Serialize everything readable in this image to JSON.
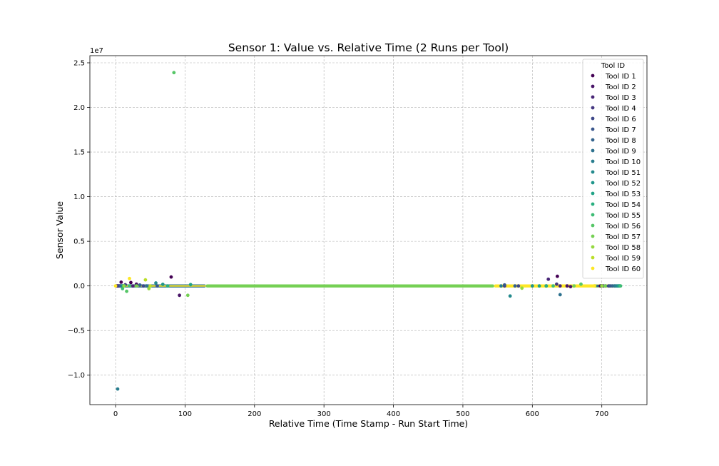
{
  "chart_data": {
    "type": "scatter",
    "title": "Sensor 1: Value vs. Relative Time (2 Runs per Tool)",
    "xlabel": "Relative Time (Time Stamp - Run Start Time)",
    "ylabel": "Sensor Value",
    "y_offset_label": "1e7",
    "xlim": [
      -37,
      765
    ],
    "ylim": [
      -13300000,
      25800000
    ],
    "x_ticks": [
      0,
      100,
      200,
      300,
      400,
      500,
      600,
      700
    ],
    "x_tick_labels": [
      "0",
      "100",
      "200",
      "300",
      "400",
      "500",
      "600",
      "700"
    ],
    "y_ticks": [
      -10000000,
      -5000000,
      0,
      5000000,
      10000000,
      15000000,
      20000000,
      25000000
    ],
    "y_tick_labels": [
      "−1.0",
      "−0.5",
      "0.0",
      "0.5",
      "1.0",
      "1.5",
      "2.0",
      "2.5"
    ],
    "grid": true,
    "legend": {
      "title": "Tool ID",
      "placement": "top-right",
      "entries": [
        "Tool ID 1",
        "Tool ID 2",
        "Tool ID 3",
        "Tool ID 4",
        "Tool ID 6",
        "Tool ID 7",
        "Tool ID 8",
        "Tool ID 9",
        "Tool ID 10",
        "Tool ID 51",
        "Tool ID 52",
        "Tool ID 53",
        "Tool ID 54",
        "Tool ID 55",
        "Tool ID 56",
        "Tool ID 57",
        "Tool ID 58",
        "Tool ID 59",
        "Tool ID 60"
      ],
      "colors": [
        "#440154",
        "#481467",
        "#482576",
        "#453781",
        "#3f4889",
        "#39568c",
        "#33638d",
        "#2d718e",
        "#287d8e",
        "#238a8d",
        "#1f968b",
        "#20a386",
        "#29af7f",
        "#3dbc74",
        "#56c667",
        "#75d054",
        "#95d840",
        "#bade28",
        "#fde725"
      ]
    },
    "series": [
      {
        "name": "Tool ID 1",
        "color": "#440154",
        "points": [
          [
            2,
            0
          ],
          [
            8,
            420000
          ],
          [
            22,
            380000
          ],
          [
            80,
            1000000
          ],
          [
            636,
            1080000
          ],
          [
            698,
            0
          ],
          [
            700,
            0
          ]
        ]
      },
      {
        "name": "Tool ID 2",
        "color": "#481467",
        "points": [
          [
            5,
            0
          ],
          [
            30,
            200000
          ],
          [
            92,
            -1050000
          ],
          [
            650,
            0
          ],
          [
            655,
            -80000
          ],
          [
            700,
            0
          ]
        ]
      },
      {
        "name": "Tool ID 3",
        "color": "#482576",
        "points": [
          [
            3,
            0
          ],
          [
            25,
            0
          ],
          [
            620,
            0
          ],
          [
            623,
            750000
          ],
          [
            640,
            0
          ],
          [
            702,
            0
          ]
        ]
      },
      {
        "name": "Tool ID 4",
        "color": "#453781",
        "points": [
          [
            4,
            0
          ],
          [
            14,
            130000
          ],
          [
            560,
            0
          ],
          [
            635,
            200000
          ],
          [
            705,
            0
          ]
        ]
      },
      {
        "name": "Tool ID 6",
        "color": "#3f4889",
        "points": [
          [
            6,
            0
          ],
          [
            40,
            0
          ],
          [
            580,
            0
          ],
          [
            710,
            0
          ]
        ]
      },
      {
        "name": "Tool ID 7",
        "color": "#39568c",
        "points": [
          [
            7,
            0
          ],
          [
            60,
            0
          ],
          [
            560,
            110000
          ],
          [
            712,
            0
          ]
        ]
      },
      {
        "name": "Tool ID 8",
        "color": "#33638d",
        "points": [
          [
            8,
            0
          ],
          [
            35,
            100000
          ],
          [
            575,
            0
          ],
          [
            715,
            0
          ]
        ]
      },
      {
        "name": "Tool ID 9",
        "color": "#2d718e",
        "points": [
          [
            9,
            0
          ],
          [
            45,
            0
          ],
          [
            640,
            -980000
          ],
          [
            718,
            0
          ]
        ]
      },
      {
        "name": "Tool ID 10",
        "color": "#287d8e",
        "points": [
          [
            3,
            -11550000
          ],
          [
            12,
            0
          ],
          [
            555,
            0
          ],
          [
            720,
            0
          ]
        ]
      },
      {
        "name": "Tool ID 51",
        "color": "#238a8d",
        "points": [
          [
            10,
            0
          ],
          [
            58,
            330000
          ],
          [
            568,
            -1130000
          ],
          [
            722,
            0
          ]
        ]
      },
      {
        "name": "Tool ID 52",
        "color": "#1f968b",
        "points": [
          [
            11,
            0
          ],
          [
            68,
            180000
          ],
          [
            600,
            0
          ],
          [
            724,
            0
          ]
        ]
      },
      {
        "name": "Tool ID 53",
        "color": "#20a386",
        "points": [
          [
            12,
            0
          ],
          [
            108,
            150000
          ],
          [
            610,
            0
          ],
          [
            725,
            0
          ]
        ]
      },
      {
        "name": "Tool ID 54",
        "color": "#29af7f",
        "points": [
          [
            13,
            0
          ],
          [
            75,
            0
          ],
          [
            620,
            0
          ],
          [
            726,
            0
          ]
        ]
      },
      {
        "name": "Tool ID 55",
        "color": "#3dbc74",
        "points": [
          [
            10,
            -300000
          ],
          [
            20,
            0
          ],
          [
            630,
            0
          ],
          [
            727,
            0
          ]
        ]
      },
      {
        "name": "Tool ID 56",
        "color": "#56c667",
        "points": [
          [
            84,
            23900000
          ],
          [
            16,
            -600000
          ],
          [
            670,
            200000
          ],
          [
            700,
            0
          ]
        ]
      },
      {
        "name": "Tool ID 57",
        "color": "#75d054",
        "points": [
          [
            104,
            -1050000
          ],
          [
            30,
            0
          ],
          [
            660,
            0
          ],
          [
            705,
            0
          ]
        ]
      },
      {
        "name": "Tool ID 58",
        "color": "#95d840",
        "points": [
          [
            48,
            -300000
          ],
          [
            12,
            0
          ],
          [
            585,
            -250000
          ],
          [
            700,
            0
          ]
        ]
      },
      {
        "name": "Tool ID 59",
        "color": "#bade28",
        "points": [
          [
            43,
            680000
          ],
          [
            50,
            0
          ],
          [
            690,
            0
          ]
        ]
      },
      {
        "name": "Tool ID 60",
        "color": "#fde725",
        "points": [
          [
            20,
            830000
          ],
          [
            0,
            0
          ],
          [
            689,
            0
          ]
        ]
      }
    ],
    "dense_band": {
      "y": 0,
      "x_ranges": [
        [
          0,
          130
        ],
        [
          130,
          545
        ],
        [
          545,
          728
        ]
      ]
    }
  }
}
